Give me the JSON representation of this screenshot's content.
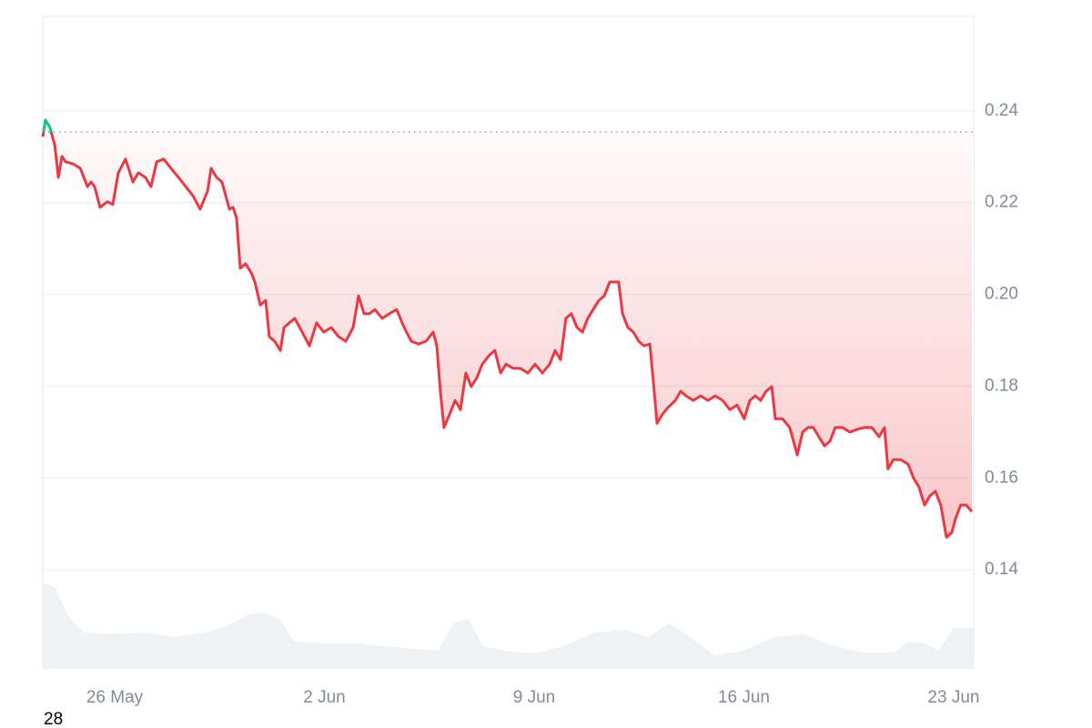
{
  "chart_data": {
    "type": "line",
    "x": [
      23.6,
      23.69,
      23.84,
      24.0,
      24.12,
      24.24,
      24.36,
      24.6,
      24.85,
      25.09,
      25.21,
      25.33,
      25.51,
      25.76,
      25.94,
      26.12,
      26.36,
      26.61,
      26.79,
      27.03,
      27.21,
      27.4,
      27.64,
      27.88,
      28.13,
      28.37,
      28.61,
      28.85,
      29.1,
      29.22,
      29.4,
      29.58,
      29.83,
      29.95,
      30.07,
      30.19,
      30.37,
      30.56,
      30.68,
      30.86,
      31.04,
      31.16,
      31.34,
      31.53,
      31.65,
      31.83,
      32.01,
      32.26,
      32.5,
      32.74,
      32.98,
      33.23,
      33.47,
      33.71,
      33.96,
      34.14,
      34.32,
      34.5,
      34.69,
      34.93,
      35.17,
      35.41,
      35.66,
      35.9,
      36.14,
      36.39,
      36.63,
      36.75,
      36.87,
      36.99,
      37.18,
      37.36,
      37.54,
      37.72,
      37.9,
      38.09,
      38.27,
      38.51,
      38.69,
      38.88,
      39.06,
      39.3,
      39.54,
      39.79,
      40.03,
      40.27,
      40.52,
      40.7,
      40.88,
      41.06,
      41.24,
      41.43,
      41.61,
      41.79,
      41.97,
      42.16,
      42.34,
      42.52,
      42.7,
      42.82,
      42.95,
      43.13,
      43.31,
      43.49,
      43.67,
      43.86,
      43.98,
      44.1,
      44.28,
      44.46,
      44.71,
      44.89,
      45.07,
      45.31,
      45.56,
      45.8,
      46.04,
      46.29,
      46.53,
      46.77,
      47.01,
      47.2,
      47.38,
      47.56,
      47.74,
      47.93,
      48.05,
      48.29,
      48.53,
      48.78,
      48.96,
      49.14,
      49.32,
      49.5,
      49.69,
      49.87,
      50.05,
      50.29,
      50.54,
      50.78,
      51.02,
      51.27,
      51.51,
      51.69,
      51.81,
      51.99,
      52.24,
      52.48,
      52.66,
      52.84,
      53.03,
      53.21,
      53.39,
      53.57,
      53.76,
      53.94,
      54.06,
      54.24,
      54.42,
      54.61
    ],
    "series": [
      {
        "color": "#ea3943",
        "above_color": "#16c784",
        "values": [
          0.2344,
          0.238,
          0.2364,
          0.2325,
          0.2255,
          0.2301,
          0.2289,
          0.2285,
          0.2275,
          0.2235,
          0.2245,
          0.2235,
          0.219,
          0.2202,
          0.2196,
          0.2265,
          0.2295,
          0.2245,
          0.2265,
          0.2255,
          0.2235,
          0.2289,
          0.2295,
          0.2275,
          0.2255,
          0.2235,
          0.2215,
          0.2186,
          0.2225,
          0.2275,
          0.2255,
          0.2245,
          0.2186,
          0.219,
          0.2166,
          0.2057,
          0.2067,
          0.2047,
          0.2027,
          0.1977,
          0.1987,
          0.1908,
          0.1898,
          0.1878,
          0.1928,
          0.1938,
          0.1948,
          0.1918,
          0.1888,
          0.1938,
          0.1918,
          0.1928,
          0.1908,
          0.1898,
          0.1928,
          0.1997,
          0.1958,
          0.1958,
          0.1967,
          0.1948,
          0.1958,
          0.1967,
          0.1928,
          0.1898,
          0.1892,
          0.1898,
          0.1918,
          0.1888,
          0.1789,
          0.171,
          0.1739,
          0.1769,
          0.1749,
          0.1829,
          0.1799,
          0.1819,
          0.1848,
          0.1868,
          0.1878,
          0.1829,
          0.1848,
          0.1839,
          0.1839,
          0.1829,
          0.1848,
          0.1829,
          0.1848,
          0.1878,
          0.1858,
          0.1948,
          0.1958,
          0.1928,
          0.1918,
          0.1948,
          0.1967,
          0.1987,
          0.1997,
          0.2027,
          0.2027,
          0.2027,
          0.1958,
          0.1928,
          0.1918,
          0.1898,
          0.1888,
          0.1892,
          0.1809,
          0.1719,
          0.1739,
          0.1753,
          0.1769,
          0.1789,
          0.1779,
          0.1769,
          0.1779,
          0.1769,
          0.1779,
          0.1769,
          0.1749,
          0.1759,
          0.1729,
          0.1769,
          0.1779,
          0.1769,
          0.1789,
          0.1799,
          0.1729,
          0.1729,
          0.171,
          0.165,
          0.17,
          0.171,
          0.171,
          0.169,
          0.167,
          0.168,
          0.171,
          0.171,
          0.17,
          0.1706,
          0.171,
          0.171,
          0.169,
          0.171,
          0.162,
          0.164,
          0.164,
          0.163,
          0.16,
          0.1581,
          0.1541,
          0.1561,
          0.1571,
          0.1541,
          0.1471,
          0.1481,
          0.1511,
          0.1541,
          0.1541,
          0.1527
        ]
      }
    ],
    "reference_value": 0.2354,
    "volume": {
      "color": "#eff2f5",
      "vlim": [
        0,
        100
      ],
      "x": [
        23.6,
        24.0,
        24.5,
        25,
        26,
        27,
        28,
        29,
        29.6,
        30.5,
        31,
        31.5,
        32,
        33,
        34,
        35,
        36,
        36.8,
        37.3,
        37.8,
        38.3,
        39,
        40,
        41,
        42,
        43,
        43.8,
        44.5,
        45,
        46,
        47,
        48,
        49,
        50,
        51,
        52,
        52.5,
        53,
        53.5,
        54,
        54.67
      ],
      "values": [
        95,
        90,
        55,
        40,
        38,
        40,
        35,
        40,
        45,
        60,
        62,
        55,
        30,
        28,
        28,
        25,
        22,
        20,
        50,
        55,
        25,
        20,
        17,
        25,
        40,
        43,
        35,
        50,
        40,
        15,
        20,
        35,
        38,
        25,
        18,
        18,
        30,
        28,
        20,
        45,
        45
      ]
    },
    "xlim": [
      23.6,
      54.67
    ],
    "xticks": [
      {
        "value": 26,
        "label": "26 May"
      },
      {
        "value": 33,
        "label": "2 Jun"
      },
      {
        "value": 40,
        "label": "9 Jun"
      },
      {
        "value": 47,
        "label": "16 Jun"
      },
      {
        "value": 54,
        "label": "23 Jun"
      }
    ],
    "ylim": [
      0.1184,
      0.2606
    ],
    "yticks": [
      0.14,
      0.16,
      0.18,
      {
        "value": 0.2,
        "label": "0.20"
      },
      0.22,
      0.24
    ],
    "grid": true,
    "footnote": "28"
  }
}
